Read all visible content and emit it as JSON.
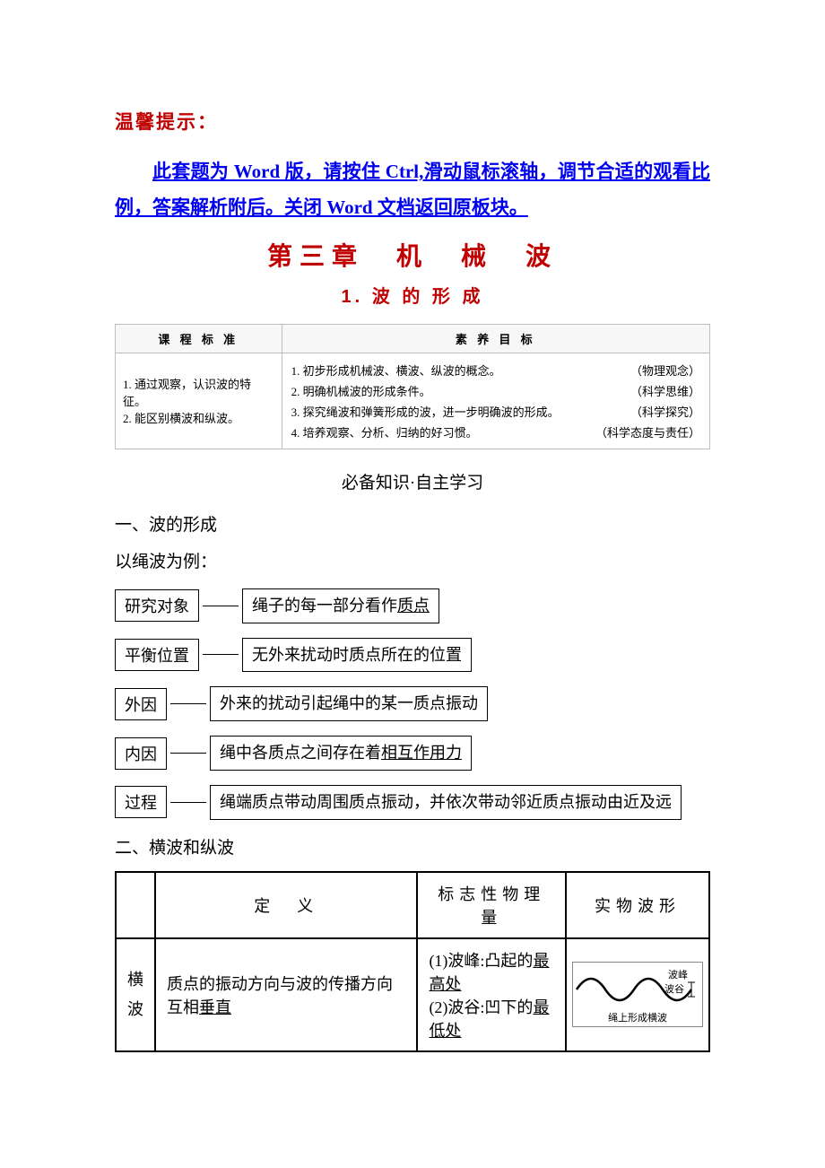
{
  "colors": {
    "warm_tip": "#c00000",
    "banner_u": "#0000ee",
    "chapter": "#c00000",
    "section": "#c00000",
    "text": "#000000",
    "table_border": "#bfbfbf",
    "table_hdr_bg": "#f7f7f7",
    "wave_curve": "#000000"
  },
  "warm_tip": "温馨提示：",
  "banner": {
    "pre": "此套题为 Word 版，请按住 Ctrl,滑动鼠标滚轴，调节合适的观看比例，答案解析附后。",
    "tail": "关闭 Word 文档返回原板块。"
  },
  "chapter_title": "第三章　机　械　波",
  "section_title": "1. 波 的 形 成",
  "standards": {
    "col1_header": "课 程 标 准",
    "col2_header": "素 养 目 标",
    "left_items": [
      "1. 通过观察，认识波的特征。",
      "2. 能区别横波和纵波。"
    ],
    "goals": [
      {
        "text": "1. 初步形成机械波、横波、纵波的概念。",
        "tag": "（物理观念）"
      },
      {
        "text": "2. 明确机械波的形成条件。",
        "tag": "（科学思维）"
      },
      {
        "text": "3. 探究绳波和弹簧形成的波，进一步明确波的形成。",
        "tag": "（科学探究）"
      },
      {
        "text": "4. 培养观察、分析、归纳的好习惯。",
        "tag": "（科学态度与责任）"
      }
    ]
  },
  "sub_heading": "必备知识·自主学习",
  "h2_1": "一、波的形成",
  "intro": "以绳波为例：",
  "concepts": [
    {
      "label": "研究对象",
      "pre": "绳子的每一部分看作",
      "u": "质点",
      "post": ""
    },
    {
      "label": "平衡位置",
      "pre": "无外来扰动时质点所在的位置",
      "u": "",
      "post": ""
    },
    {
      "label": "外因",
      "pre": "外来的扰动引起绳中的某一质点振动",
      "u": "",
      "post": ""
    },
    {
      "label": "内因",
      "pre": "绳中各质点之间存在着",
      "u": "相互作用力",
      "post": ""
    },
    {
      "label": "过程",
      "pre": "绳端质点带动周围质点振动，并依次带动邻近质点振动由近及远",
      "u": "",
      "post": ""
    }
  ],
  "h2_2": "二、横波和纵波",
  "wave_table": {
    "headers": [
      "",
      "定　义",
      "标志性物理量",
      "实物波形"
    ],
    "row1": {
      "label": "横波",
      "def_pre": "质点的振动方向与波的传播方向互相",
      "def_u": "垂直",
      "phys": [
        {
          "pre": "(1)波峰:凸起的",
          "u": "最高处"
        },
        {
          "pre": "(2)波谷:凹下的",
          "u": "最低处"
        }
      ],
      "fig": {
        "crest": "波峰",
        "trough": "波谷",
        "caption": "绳上形成横波"
      }
    }
  }
}
